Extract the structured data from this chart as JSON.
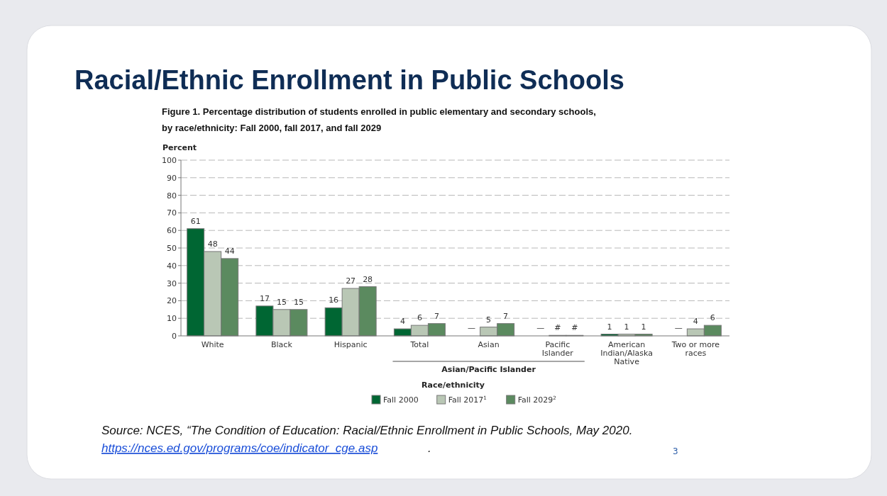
{
  "chart_data": {
    "type": "bar",
    "title": "Racial/Ethnic Enrollment in Public Schools",
    "subtitle": "Figure 1. Percentage distribution of students enrolled in public elementary and secondary schools, by race/ethnicity: Fall 2000, fall 2017, and fall 2029",
    "ylabel": "Percent",
    "xlabel": "Race/ethnicity",
    "categories": [
      "White",
      "Black",
      "Hispanic",
      "Total",
      "Asian",
      "Pacific Islander",
      "American Indian/Alaska Native",
      "Two or more races"
    ],
    "series": [
      {
        "name": "Fall 2000",
        "color": "#006633",
        "values": [
          61,
          17,
          16,
          4,
          null,
          null,
          1,
          null
        ],
        "value_labels": [
          "61",
          "17",
          "16",
          "4",
          "—",
          "—",
          "1",
          "—"
        ]
      },
      {
        "name": "Fall 2017$^{1}$",
        "color": "#b9c7b5",
        "values": [
          48,
          15,
          27,
          6,
          5,
          0.3,
          1,
          4
        ],
        "value_labels": [
          "48",
          "15",
          "27",
          "6",
          "5",
          "#",
          "1",
          "4"
        ]
      },
      {
        "name": "Fall 2029$^{2}$",
        "color": "#5b8a5f",
        "values": [
          44,
          15,
          28,
          7,
          7,
          0.3,
          1,
          6
        ],
        "value_labels": [
          "44",
          "15",
          "28",
          "7",
          "7",
          "#",
          "1",
          "6"
        ]
      }
    ],
    "ylim": [
      0,
      100
    ],
    "yticks": [
      0,
      10,
      20,
      30,
      40,
      50,
      60,
      70,
      80,
      90,
      100
    ],
    "grid": "y",
    "legend": "bottom",
    "annotations": [
      "Asian/Pacific Islander",
      "Source: NCES, “The Condition of Education: Racial/Ethnic Enrollment in Public Schools, May 2020.",
      "https://nces.ed.gov/programs/coe/indicator_cge.asp",
      ".",
      "3"
    ]
  }
}
